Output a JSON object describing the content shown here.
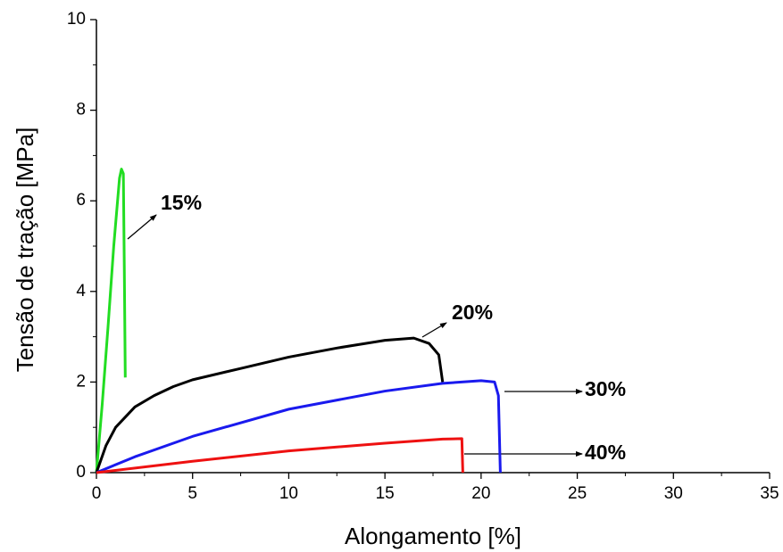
{
  "chart_data": {
    "type": "line",
    "x_label": "Alongamento [%]",
    "y_label": "Tensão de tração  [MPa]",
    "xlim": [
      0,
      35
    ],
    "xticks": [
      0,
      5,
      10,
      15,
      20,
      25,
      30,
      35
    ],
    "ylim": [
      0,
      10
    ],
    "yticks": [
      0,
      2,
      4,
      6,
      8,
      10
    ],
    "series": [
      {
        "name": "15%",
        "color": "#22dd22",
        "x": [
          0,
          0.3,
          0.6,
          0.9,
          1.2,
          1.3,
          1.4,
          1.45,
          1.5
        ],
        "values": [
          0,
          1.5,
          3.2,
          5.0,
          6.5,
          6.7,
          6.6,
          4.5,
          2.1
        ]
      },
      {
        "name": "20%",
        "color": "#000000",
        "x": [
          0,
          0.5,
          1,
          2,
          3,
          4,
          5,
          7.5,
          10,
          12.5,
          15,
          16.5,
          17.3,
          17.8,
          18
        ],
        "values": [
          0,
          0.6,
          1.0,
          1.45,
          1.7,
          1.9,
          2.05,
          2.3,
          2.55,
          2.75,
          2.92,
          2.97,
          2.85,
          2.6,
          2.0
        ]
      },
      {
        "name": "30%",
        "color": "#1a1aee",
        "x": [
          0,
          2,
          5,
          10,
          15,
          18,
          20,
          20.7,
          20.9,
          21
        ],
        "values": [
          0,
          0.35,
          0.8,
          1.4,
          1.8,
          1.97,
          2.03,
          2.0,
          1.7,
          0
        ]
      },
      {
        "name": "40%",
        "color": "#ee1111",
        "x": [
          0,
          5,
          10,
          15,
          18,
          19,
          19.05
        ],
        "values": [
          0,
          0.25,
          0.48,
          0.65,
          0.74,
          0.75,
          0
        ]
      }
    ]
  }
}
